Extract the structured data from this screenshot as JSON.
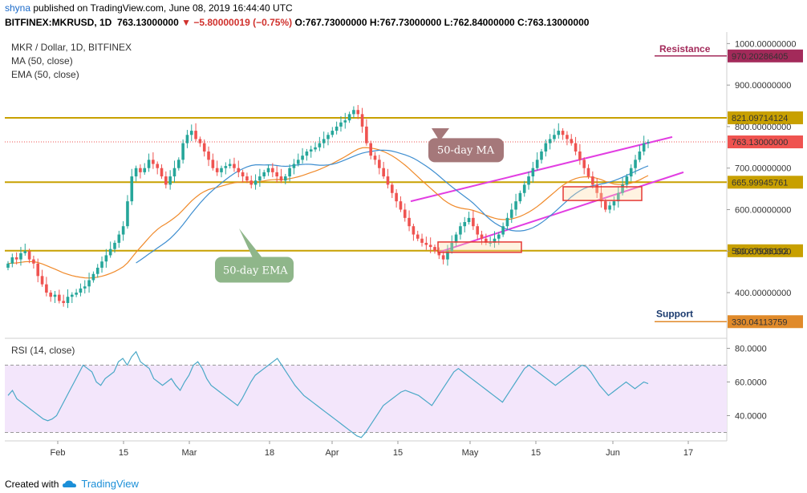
{
  "header": {
    "user": "shyna",
    "published_text": "published on TradingView.com, June 08, 2019 16:44:40 UTC",
    "symbol": "BITFINEX:MKRUSD, 1D",
    "last": "763.13000000",
    "change_arrow": "▼",
    "change": "−5.80000019 (−0.75%)",
    "ohlc": "O:767.73000000 H:767.73000000 L:762.84000000 C:763.13000000"
  },
  "footer": {
    "created_with": "Created with",
    "brand": "TradingView",
    "brand_icon": "tradingview-cloud-icon"
  },
  "colors": {
    "up": "#26a69a",
    "down": "#ef5350",
    "ma": "#3e8ed0",
    "ema": "#f08a2a",
    "level": "#c8a000",
    "channel": "#e23ee2",
    "box": "#e53935",
    "rsi": "#4aa8c7",
    "rsi_band": "#f3e6fb"
  },
  "chart_data": [
    {
      "type": "candlestick",
      "legend": [
        "MKR / Dollar, 1D, BITFINEX",
        "MA (50, close)",
        "EMA (50, close)"
      ],
      "ylim": [
        290,
        1020
      ],
      "y_ticks": [
        "1000.00000000",
        "900.00000000",
        "800.00000000",
        "700.00000000",
        "600.00000000",
        "500.00000000",
        "400.00000000"
      ],
      "x_ticks": [
        "Feb",
        "15",
        "Mar",
        "18",
        "Apr",
        "15",
        "May",
        "15",
        "Jun",
        "17"
      ],
      "levels": [
        {
          "label": "Resistance",
          "value": 970.20286405,
          "text": "970.20286405",
          "color": "#a32a5a"
        },
        {
          "label": "",
          "value": 821.09714124,
          "text": "821.09714124",
          "color": "#c8a000"
        },
        {
          "label": "",
          "value": 763.13,
          "text": "763.13000000",
          "color": "#ef5350"
        },
        {
          "label": "",
          "value": 665.99945761,
          "text": "665.99945761",
          "color": "#c8a000"
        },
        {
          "label": "",
          "value": 500.87936192,
          "text": "500.87936192",
          "color": "#c8a000"
        },
        {
          "label": "Support",
          "value": 330.04113759,
          "text": "330.04113759",
          "color": "#e08a2a"
        }
      ],
      "annotations": [
        {
          "text": "50-day MA",
          "x": "Apr 22",
          "y": 745
        },
        {
          "text": "50-day EMA",
          "x": "Mar 8",
          "y": 455
        }
      ],
      "close": [
        470,
        485,
        480,
        495,
        500,
        480,
        470,
        440,
        420,
        400,
        390,
        395,
        380,
        375,
        390,
        395,
        400,
        410,
        415,
        430,
        445,
        460,
        475,
        490,
        505,
        520,
        540,
        560,
        620,
        680,
        700,
        690,
        700,
        720,
        710,
        700,
        680,
        660,
        680,
        700,
        720,
        760,
        780,
        790,
        770,
        760,
        740,
        720,
        700,
        690,
        700,
        705,
        710,
        700,
        690,
        680,
        670,
        660,
        670,
        680,
        690,
        700,
        690,
        680,
        670,
        680,
        700,
        710,
        720,
        730,
        740,
        745,
        750,
        760,
        770,
        780,
        790,
        800,
        810,
        815,
        830,
        840,
        830,
        800,
        760,
        730,
        720,
        700,
        680,
        660,
        640,
        620,
        600,
        580,
        560,
        540,
        530,
        520,
        515,
        510,
        500,
        490,
        480,
        500,
        520,
        540,
        560,
        570,
        580,
        560,
        540,
        530,
        520,
        520,
        530,
        540,
        560,
        580,
        600,
        620,
        640,
        660,
        680,
        700,
        720,
        740,
        760,
        770,
        780,
        790,
        780,
        770,
        760,
        740,
        720,
        700,
        680,
        660,
        640,
        620,
        600,
        610,
        620,
        640,
        660,
        680,
        700,
        720,
        740,
        760,
        763.13
      ]
    },
    {
      "type": "line",
      "legend": [
        "RSI (14, close)"
      ],
      "ylim": [
        25,
        85
      ],
      "y_ticks": [
        "80.0000",
        "60.0000",
        "40.0000"
      ],
      "band": [
        30,
        70
      ],
      "values": [
        52,
        55,
        50,
        48,
        46,
        44,
        42,
        40,
        38,
        37,
        38,
        40,
        45,
        50,
        55,
        60,
        65,
        70,
        68,
        66,
        60,
        58,
        62,
        64,
        66,
        72,
        74,
        70,
        75,
        78,
        72,
        70,
        68,
        62,
        60,
        58,
        60,
        62,
        58,
        55,
        60,
        64,
        70,
        72,
        68,
        62,
        58,
        56,
        54,
        52,
        50,
        48,
        46,
        50,
        55,
        60,
        64,
        66,
        68,
        70,
        72,
        74,
        70,
        66,
        62,
        58,
        55,
        52,
        50,
        48,
        46,
        44,
        42,
        40,
        38,
        36,
        34,
        32,
        30,
        28,
        27,
        30,
        34,
        38,
        42,
        46,
        48,
        50,
        52,
        54,
        55,
        54,
        53,
        52,
        50,
        48,
        46,
        50,
        54,
        58,
        62,
        66,
        68,
        66,
        64,
        62,
        60,
        58,
        56,
        54,
        52,
        50,
        48,
        52,
        56,
        60,
        64,
        68,
        70,
        68,
        66,
        64,
        62,
        60,
        58,
        60,
        62,
        64,
        66,
        68,
        70,
        69,
        66,
        62,
        58,
        55,
        52,
        54,
        56,
        58,
        60,
        58,
        56,
        58,
        60,
        59
      ]
    }
  ]
}
